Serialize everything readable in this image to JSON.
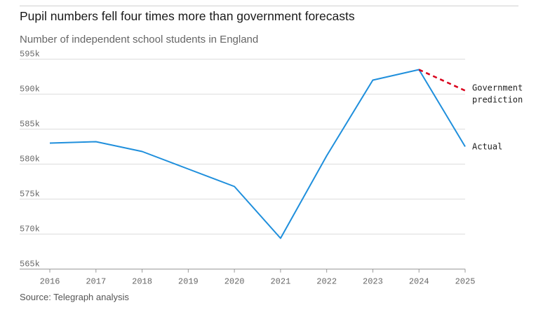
{
  "title": "Pupil numbers fell four times more than government forecasts",
  "subtitle": "Number of independent school students in England",
  "source": "Source: Telegraph analysis",
  "colors": {
    "actual": "#1f8fdc",
    "prediction": "#d9001b",
    "grid": "#dddddd",
    "axis": "#999999"
  },
  "chart_data": {
    "type": "line",
    "title": "Pupil numbers fell four times more than government forecasts",
    "xlabel": "",
    "ylabel": "Number of independent school students in England",
    "ylim": [
      565000,
      595000
    ],
    "y_ticks": [
      565000,
      570000,
      575000,
      580000,
      585000,
      590000,
      595000
    ],
    "y_tick_labels": [
      "565k",
      "570k",
      "575k",
      "580k",
      "585k",
      "590k",
      "595k"
    ],
    "x": [
      "2016",
      "2017",
      "2018",
      "2019",
      "2020",
      "2021",
      "2022",
      "2023",
      "2024",
      "2025"
    ],
    "series": [
      {
        "name": "Actual",
        "label_lines": [
          "Actual"
        ],
        "style": "solid",
        "x": [
          "2016",
          "2017",
          "2018",
          "2019",
          "2020",
          "2021",
          "2022",
          "2023",
          "2024",
          "2025"
        ],
        "values": [
          583000,
          583200,
          581800,
          579300,
          576800,
          569400,
          581200,
          592000,
          593500,
          582500
        ]
      },
      {
        "name": "Government prediction",
        "label_lines": [
          "Government",
          "prediction"
        ],
        "style": "dashed",
        "x": [
          "2024",
          "2025"
        ],
        "values": [
          593500,
          590500
        ]
      }
    ]
  }
}
